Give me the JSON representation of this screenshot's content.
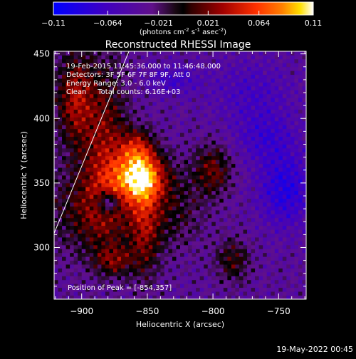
{
  "chart_data": {
    "type": "heatmap",
    "title": "Reconstructed RHESSI Image",
    "xlabel": "Heliocentric X (arcsec)",
    "ylabel": "Heliocentric Y (arcsec)",
    "xlim": [
      -921,
      -729
    ],
    "ylim": [
      260,
      452
    ],
    "x_ticks": [
      -900,
      -850,
      -800,
      -750
    ],
    "y_ticks": [
      300,
      350,
      400,
      450
    ],
    "colorbar": {
      "label_prefix": "(photons cm",
      "label_sup1": "-2",
      "label_mid": " s",
      "label_sup2": "-1",
      "label_mid2": " asec",
      "label_sup3": "-2",
      "label_suffix": ")",
      "range": [
        -0.11,
        0.11
      ],
      "ticks": [
        "-0.11",
        "-0.064",
        "-0.021",
        "0.021",
        "0.064",
        "0.11"
      ],
      "tick_values": [
        -0.11,
        -0.064,
        -0.021,
        0.021,
        0.064,
        0.11
      ]
    },
    "annotations": {
      "time": "19-Feb-2015 11:45:36.000 to 11:46:48.000",
      "detectors": "Detectors: 3F 5F 6F 7F 8F 9F, Att 0",
      "energy": "Energy Range: 3.0 - 6.0 keV",
      "clean": "Clean     Total counts: 6.16E+03",
      "peak": "Position of Peak = [-854,357]"
    },
    "peak": [
      -854,
      357
    ],
    "sources": [
      {
        "x": -856,
        "y": 355,
        "sx": 13,
        "sy": 13,
        "amp": 0.12
      },
      {
        "x": -858,
        "y": 378,
        "sx": 9,
        "sy": 10,
        "amp": 0.055
      },
      {
        "x": -882,
        "y": 380,
        "sx": 12,
        "sy": 45,
        "amp": 0.055
      },
      {
        "x": -905,
        "y": 415,
        "sx": 10,
        "sy": 25,
        "amp": 0.065
      },
      {
        "x": -890,
        "y": 330,
        "sx": 25,
        "sy": 25,
        "amp": 0.045
      },
      {
        "x": -852,
        "y": 318,
        "sx": 8,
        "sy": 30,
        "amp": 0.05
      },
      {
        "x": -800,
        "y": 360,
        "sx": 10,
        "sy": 14,
        "amp": 0.05
      },
      {
        "x": -785,
        "y": 290,
        "sx": 9,
        "sy": 12,
        "amp": 0.04
      },
      {
        "x": -830,
        "y": 330,
        "sx": 16,
        "sy": 22,
        "amp": 0.03
      },
      {
        "x": -875,
        "y": 290,
        "sx": 10,
        "sy": 8,
        "amp": 0.045
      },
      {
        "x": -880,
        "y": 335,
        "sx": 6,
        "sy": 6,
        "amp": -0.07
      },
      {
        "x": -745,
        "y": 345,
        "sx": 14,
        "sy": 20,
        "amp": -0.05
      },
      {
        "x": -770,
        "y": 420,
        "sx": 22,
        "sy": 18,
        "amp": -0.025
      },
      {
        "x": -830,
        "y": 430,
        "sx": 14,
        "sy": 8,
        "amp": -0.03
      },
      {
        "x": -760,
        "y": 385,
        "sx": 16,
        "sy": 14,
        "amp": -0.03
      }
    ],
    "limb_line": [
      [
        -921,
        311
      ],
      [
        -864,
        452
      ]
    ]
  },
  "footer": {
    "date": "19-May-2022 00:45"
  }
}
